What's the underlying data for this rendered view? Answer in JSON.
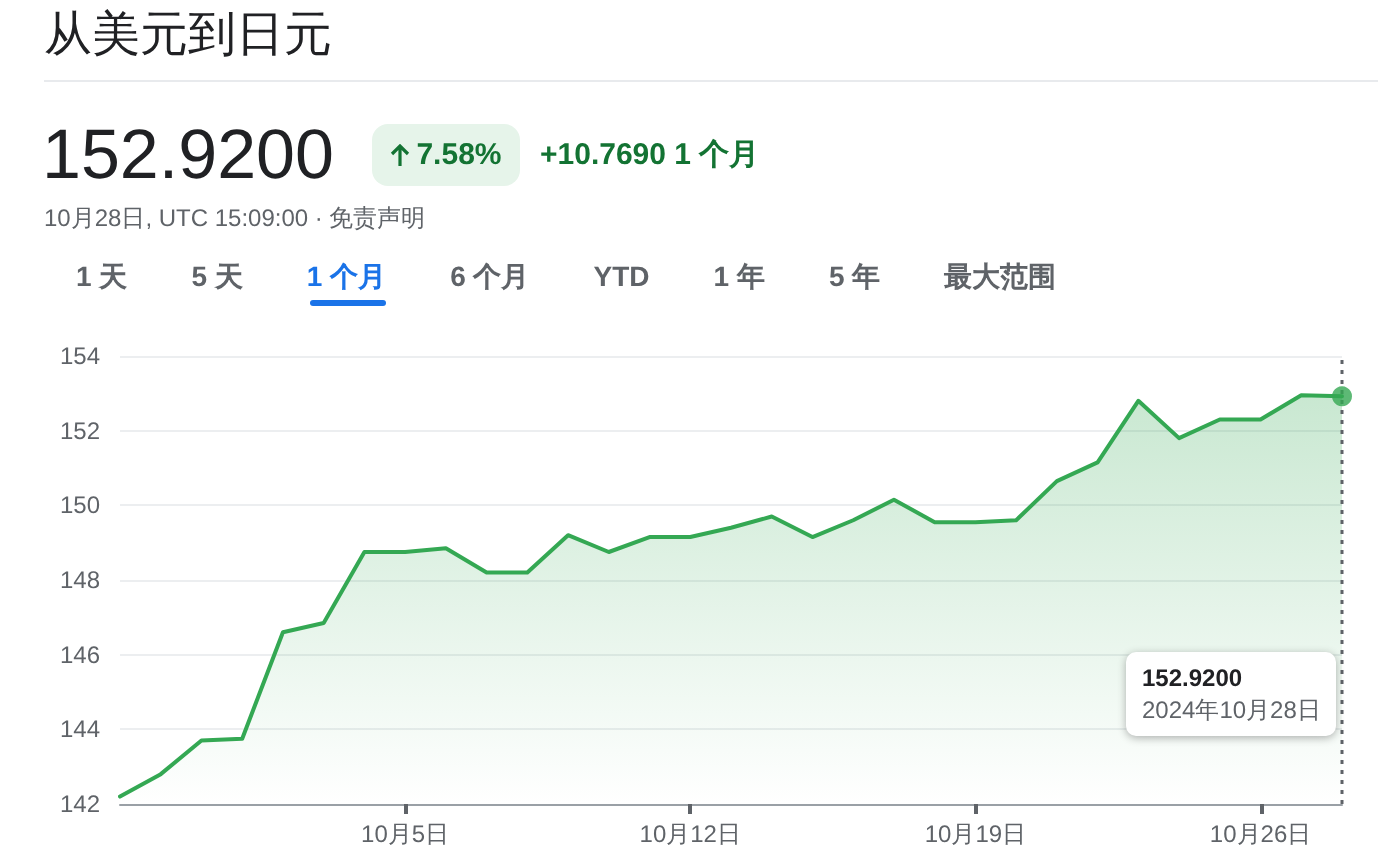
{
  "chart_data": {
    "type": "area",
    "title": "从美元到日元",
    "subtitle": "10月28日, UTC 15:09:00 · 免责声明",
    "x": [
      "2024-09-28",
      "2024-09-29",
      "2024-09-30",
      "2024-10-01",
      "2024-10-02",
      "2024-10-03",
      "2024-10-04",
      "2024-10-05",
      "2024-10-06",
      "2024-10-07",
      "2024-10-08",
      "2024-10-09",
      "2024-10-10",
      "2024-10-11",
      "2024-10-12",
      "2024-10-13",
      "2024-10-14",
      "2024-10-15",
      "2024-10-16",
      "2024-10-17",
      "2024-10-18",
      "2024-10-19",
      "2024-10-20",
      "2024-10-21",
      "2024-10-22",
      "2024-10-23",
      "2024-10-24",
      "2024-10-25",
      "2024-10-26",
      "2024-10-27",
      "2024-10-28"
    ],
    "series": [
      {
        "color": "#34a853",
        "marker": "none",
        "values": [
          142.2,
          142.8,
          143.7,
          143.75,
          146.6,
          146.85,
          148.75,
          148.75,
          148.85,
          148.2,
          148.2,
          149.2,
          148.75,
          149.15,
          149.15,
          149.4,
          149.7,
          149.15,
          149.6,
          150.15,
          149.55,
          149.55,
          149.6,
          150.65,
          151.15,
          152.8,
          151.8,
          152.3,
          152.3,
          152.95,
          152.92
        ]
      },
      {
        "type": "scatter",
        "color": "#34a853",
        "marker": "circle",
        "x": [
          "2024-10-28"
        ],
        "values": [
          152.92
        ]
      }
    ],
    "xlim": [
      "2024-09-28",
      "2024-10-28"
    ],
    "xticks": [
      {
        "value": "2024-10-05",
        "label": "10月5日"
      },
      {
        "value": "2024-10-12",
        "label": "10月12日"
      },
      {
        "value": "2024-10-19",
        "label": "10月19日"
      },
      {
        "value": "2024-10-26",
        "label": "10月26日"
      }
    ],
    "ylim": [
      142,
      154
    ],
    "yticks": [
      142,
      144,
      146,
      148,
      150,
      152,
      154
    ],
    "grid": "y",
    "ref_lines": [
      {
        "axis": "x",
        "value": "2024-10-28",
        "color": "#5f6368",
        "line_style": "dotted"
      }
    ],
    "annotations": [
      "152.9200",
      "7.58%",
      "+10.7690 1 个月",
      "1 天",
      "5 天",
      "1 个月",
      "6 个月",
      "YTD",
      "1 年",
      "5 年",
      "最大范围",
      "152.9200",
      "2024年10月28日"
    ]
  }
}
